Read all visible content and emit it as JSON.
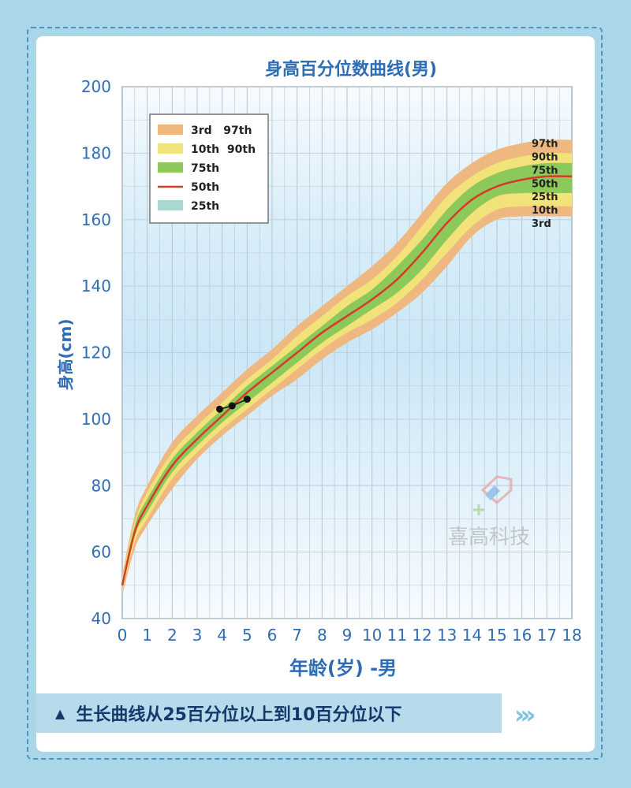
{
  "chart_data": {
    "type": "line",
    "title": "身高百分位数曲线(男)",
    "xlabel": "年龄(岁) -男",
    "ylabel": "身高(cm)",
    "xlim": [
      0,
      18
    ],
    "ylim": [
      40,
      200
    ],
    "xticks": [
      "0",
      "1",
      "2",
      "3",
      "4",
      "5",
      "6",
      "7",
      "8",
      "9",
      "10",
      "11",
      "12",
      "13",
      "14",
      "15",
      "16",
      "17",
      "18"
    ],
    "yticks": [
      "40",
      "60",
      "80",
      "100",
      "120",
      "140",
      "160",
      "180",
      "200"
    ],
    "grid": true,
    "legend_position": "top-left",
    "legend": [
      "3rd   97th",
      "10th  90th",
      "75th",
      "50th",
      "25th"
    ],
    "band_colors": {
      "3rd_97th": "#eeb880",
      "10th_90th": "#f2e27a",
      "25th_75th": "#8cc85a",
      "50th": "#d83a2a",
      "25th_legend": "#a8d8d0"
    },
    "x": [
      0,
      0.5,
      1,
      2,
      3,
      4,
      5,
      6,
      7,
      8,
      9,
      10,
      11,
      12,
      13,
      14,
      15,
      16,
      17,
      18
    ],
    "series": [
      {
        "name": "3rd",
        "values": [
          47,
          61,
          68,
          79,
          88,
          95,
          101,
          107,
          112,
          118,
          123,
          127,
          132,
          138,
          146,
          155,
          160,
          161,
          161,
          161
        ]
      },
      {
        "name": "10th",
        "values": [
          48,
          63,
          70,
          82,
          90,
          97,
          103,
          109,
          115,
          121,
          126,
          130,
          135,
          142,
          150,
          158,
          163,
          164,
          164,
          164
        ]
      },
      {
        "name": "25th",
        "values": [
          49,
          65,
          72,
          84,
          92,
          99,
          105,
          111,
          117,
          123,
          128,
          133,
          138,
          145,
          154,
          162,
          167,
          168,
          168,
          168
        ]
      },
      {
        "name": "50th",
        "values": [
          50,
          66,
          74,
          86,
          94,
          101,
          108,
          114,
          120,
          126,
          131,
          136,
          142,
          150,
          159,
          166,
          170,
          172,
          173,
          173
        ]
      },
      {
        "name": "75th",
        "values": [
          51,
          68,
          76,
          88,
          96,
          103,
          110,
          116,
          122,
          128,
          134,
          139,
          146,
          154,
          163,
          170,
          174,
          176,
          177,
          177
        ]
      },
      {
        "name": "90th",
        "values": [
          52,
          69,
          78,
          90,
          98,
          105,
          112,
          118,
          125,
          131,
          137,
          142,
          149,
          158,
          167,
          173,
          177,
          179,
          180,
          180
        ]
      },
      {
        "name": "97th",
        "values": [
          53,
          71,
          80,
          93,
          101,
          108,
          115,
          121,
          128,
          134,
          140,
          146,
          153,
          162,
          171,
          177,
          181,
          183,
          184,
          184
        ]
      }
    ],
    "end_labels": [
      "97th",
      "90th",
      "75th",
      "50th",
      "25th",
      "10th",
      "3rd"
    ],
    "points": [
      {
        "x": 3.9,
        "y": 103
      },
      {
        "x": 4.4,
        "y": 104
      },
      {
        "x": 5.0,
        "y": 106
      }
    ]
  },
  "watermark": {
    "text": "喜高科技",
    "logo_colors": [
      "#e08a8a",
      "#7fb3e0",
      "#9fd08a"
    ]
  },
  "caption": {
    "icon": "triangle-up-icon",
    "text": "生长曲线从25百分位以上到10百分位以下",
    "arrow_icon": "triple-chevron-right-icon",
    "arrow_glyph": "›››"
  }
}
